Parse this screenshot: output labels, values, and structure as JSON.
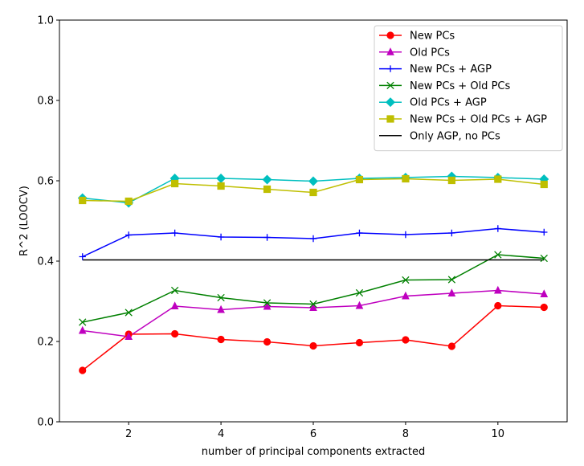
{
  "chart_data": {
    "type": "line",
    "title": "",
    "xlabel": "number of principal components extracted",
    "ylabel": "R^2 (LOOCV)",
    "xlim": [
      0.5,
      11.5
    ],
    "ylim": [
      0.0,
      1.0
    ],
    "xticks": [
      2,
      4,
      6,
      8,
      10
    ],
    "xtick_labels": [
      "2",
      "4",
      "6",
      "8",
      "10"
    ],
    "yticks": [
      0.0,
      0.2,
      0.4,
      0.6,
      0.8,
      1.0
    ],
    "ytick_labels": [
      "0.0",
      "0.2",
      "0.4",
      "0.6",
      "0.8",
      "1.0"
    ],
    "grid": false,
    "legend_position": "top-right",
    "x": [
      1,
      2,
      3,
      4,
      5,
      6,
      7,
      8,
      9,
      10,
      11
    ],
    "series": [
      {
        "name": "New PCs",
        "color": "#ff0000",
        "marker": "circle",
        "values": [
          0.128,
          0.218,
          0.219,
          0.205,
          0.199,
          0.189,
          0.197,
          0.204,
          0.188,
          0.289,
          0.285
        ]
      },
      {
        "name": "Old PCs",
        "color": "#bf00bf",
        "marker": "triangle",
        "values": [
          0.227,
          0.212,
          0.288,
          0.279,
          0.287,
          0.284,
          0.289,
          0.313,
          0.32,
          0.327,
          0.318
        ]
      },
      {
        "name": "New PCs + AGP",
        "color": "#0000ff",
        "marker": "plus",
        "values": [
          0.411,
          0.465,
          0.47,
          0.46,
          0.459,
          0.456,
          0.47,
          0.466,
          0.47,
          0.481,
          0.472
        ]
      },
      {
        "name": "New PCs + Old PCs",
        "color": "#008000",
        "marker": "x",
        "values": [
          0.248,
          0.272,
          0.327,
          0.309,
          0.296,
          0.293,
          0.321,
          0.353,
          0.354,
          0.416,
          0.407
        ]
      },
      {
        "name": "Old PCs + AGP",
        "color": "#00bfbf",
        "marker": "diamond",
        "values": [
          0.557,
          0.545,
          0.606,
          0.606,
          0.603,
          0.599,
          0.606,
          0.608,
          0.611,
          0.608,
          0.604
        ]
      },
      {
        "name": "New PCs + Old PCs + AGP",
        "color": "#bfbf00",
        "marker": "square",
        "values": [
          0.551,
          0.549,
          0.593,
          0.587,
          0.579,
          0.571,
          0.603,
          0.605,
          0.601,
          0.604,
          0.591
        ]
      },
      {
        "name": "Only AGP, no PCs",
        "color": "#000000",
        "marker": "none",
        "values": [
          0.403,
          0.403,
          0.403,
          0.403,
          0.403,
          0.403,
          0.403,
          0.403,
          0.403,
          0.403,
          0.403
        ]
      }
    ]
  }
}
